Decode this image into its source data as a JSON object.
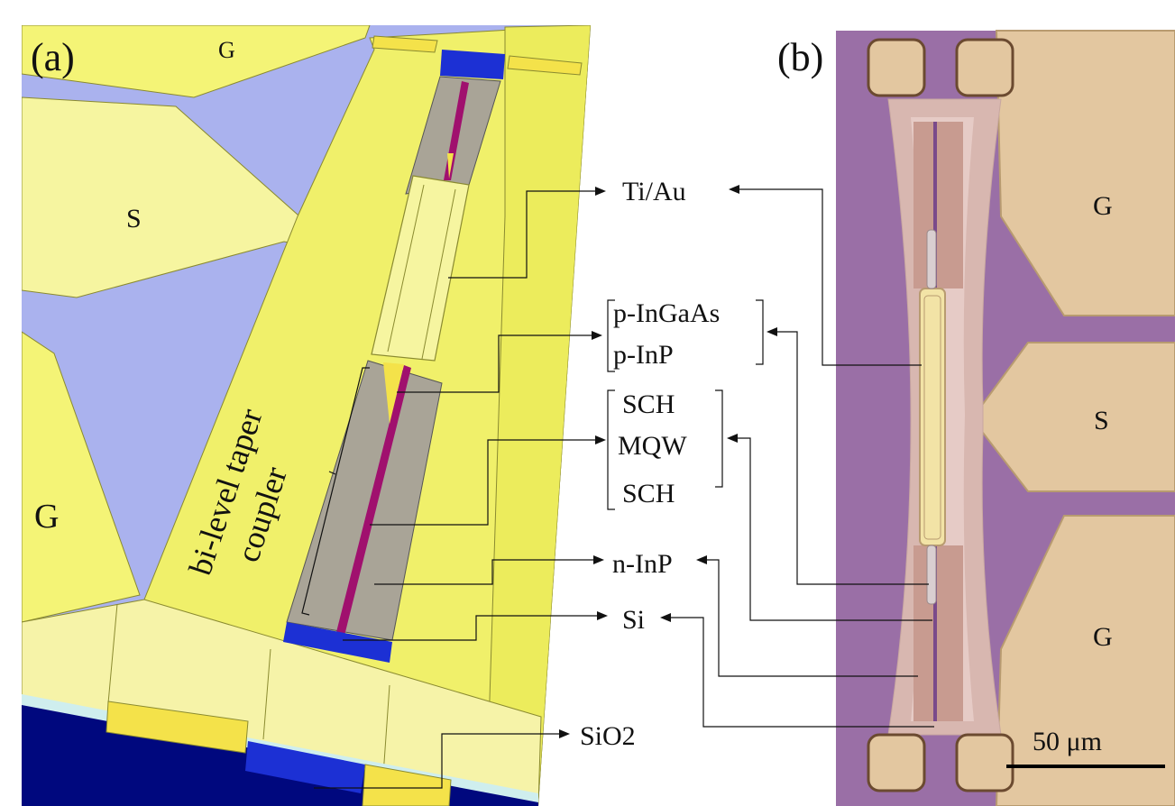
{
  "panels": {
    "a": "(a)",
    "b": "(b)"
  },
  "device_a": {
    "g_top": "G",
    "s": "S",
    "g_bottom": "G",
    "coupler_line1": "bi-level taper",
    "coupler_line2": "coupler"
  },
  "layers": {
    "ti_au": "Ti/Au",
    "p_ingaas": "p-InGaAs",
    "p_inp": "p-InP",
    "sch_top": "SCH",
    "mqw": "MQW",
    "sch_bottom": "SCH",
    "n_inp": "n-InP",
    "si": "Si",
    "sio2": "SiO2"
  },
  "device_b": {
    "g_top": "G",
    "s": "S",
    "g_bottom": "G",
    "scale_bar": "50 μm"
  },
  "colors": {
    "metal": "#f4f476",
    "metal_light": "#f6f3a8",
    "gap": "#aab2ee",
    "inp": "#a9a497",
    "mqw": "#a0106e",
    "si": "#1c30d4",
    "sio2_box": "#00087e",
    "substrate": "#9a6fa6",
    "pad": "#e3c7a0"
  }
}
